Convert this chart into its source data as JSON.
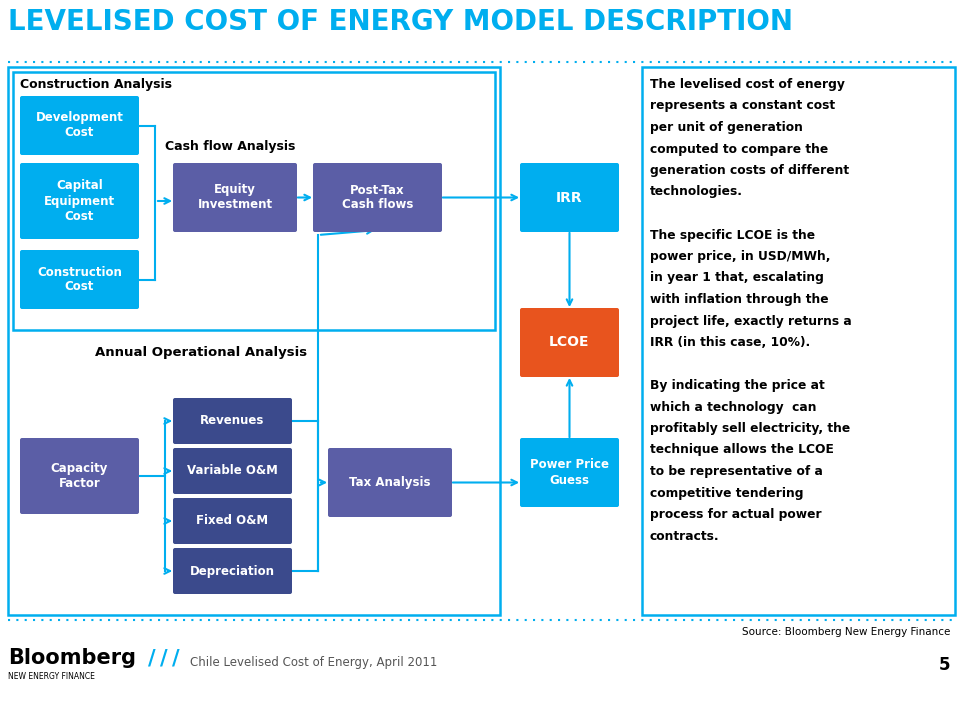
{
  "title": "LEVELISED COST OF ENERGY MODEL DESCRIPTION",
  "title_color": "#00AEEF",
  "title_fontsize": 20,
  "bg_color": "#FFFFFF",
  "cyan": "#00AEEF",
  "purple": "#5B5EA6",
  "dark_teal": "#2E6B8A",
  "orange": "#E8541E",
  "dark_blue": "#3B4A8C",
  "footer_text": "Chile Levelised Cost of Energy, April 2011",
  "source_text": "Source: Bloomberg New Energy Finance",
  "page_number": "5",
  "desc_text": [
    "The levelised cost of energy",
    "represents a constant cost",
    "per unit of generation",
    "computed to compare the",
    "generation costs of different",
    "technologies.",
    " ",
    "The specific LCOE is the",
    "power price, in USD/MWh,",
    "in year 1 that, escalating",
    "with inflation through the",
    "project life, exactly returns a",
    "IRR (in this case, 10%).",
    " ",
    "By indicating the price at",
    "which a technology  can",
    "profitably sell electricity, the",
    "technique allows the LCOE",
    "to be representative of a",
    "competitive tendering",
    "process for actual power",
    "contracts."
  ]
}
